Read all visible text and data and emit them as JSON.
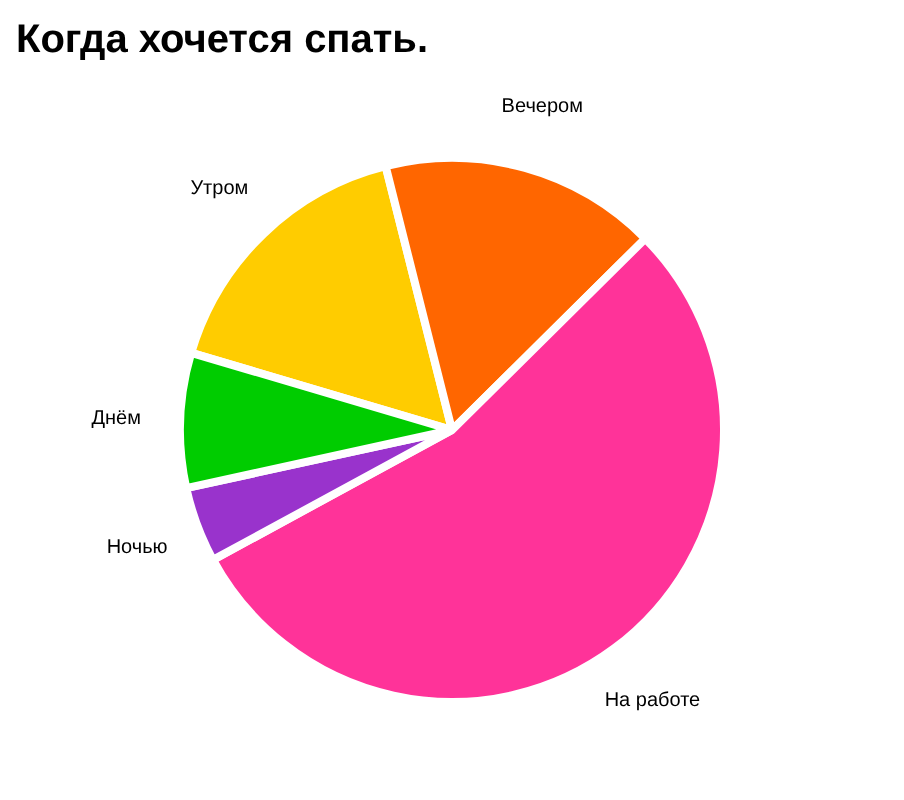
{
  "chart_data": {
    "type": "pie",
    "title": "Когда хочется спать.",
    "categories": [
      "Утром",
      "Вечером",
      "На работе",
      "Ночью",
      "Днём"
    ],
    "values": [
      16.5,
      16.5,
      54.5,
      4.5,
      8
    ],
    "colors": [
      "#ffcc00",
      "#ff6600",
      "#ff3399",
      "#9933cc",
      "#00cc00"
    ]
  }
}
